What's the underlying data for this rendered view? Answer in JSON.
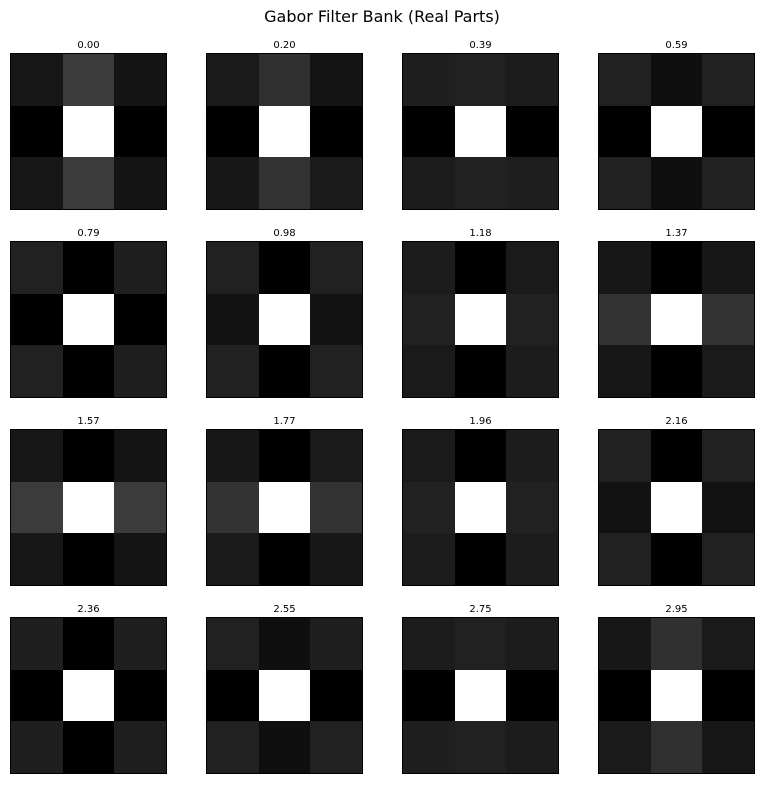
{
  "title": "Gabor Filter Bank (Real Parts)",
  "chart_data": {
    "type": "heatmap",
    "title": "Gabor Filter Bank (Real Parts)",
    "grid": false,
    "colormap": "gray",
    "layout": "4 rows x 4 columns",
    "panels": [
      {
        "title": "0.00",
        "values": [
          [
            0.09,
            0.23,
            0.08
          ],
          [
            0.0,
            1.0,
            0.0
          ],
          [
            0.09,
            0.23,
            0.08
          ]
        ]
      },
      {
        "title": "0.20",
        "values": [
          [
            0.1,
            0.19,
            0.08
          ],
          [
            0.0,
            1.0,
            0.0
          ],
          [
            0.09,
            0.2,
            0.1
          ]
        ]
      },
      {
        "title": "0.39",
        "values": [
          [
            0.12,
            0.13,
            0.11
          ],
          [
            0.0,
            1.0,
            0.0
          ],
          [
            0.11,
            0.13,
            0.12
          ]
        ]
      },
      {
        "title": "0.59",
        "values": [
          [
            0.13,
            0.06,
            0.13
          ],
          [
            0.0,
            1.0,
            0.0
          ],
          [
            0.13,
            0.06,
            0.13
          ]
        ]
      },
      {
        "title": "0.79",
        "values": [
          [
            0.13,
            0.0,
            0.12
          ],
          [
            0.0,
            1.0,
            0.0
          ],
          [
            0.13,
            0.0,
            0.12
          ]
        ]
      },
      {
        "title": "0.98",
        "values": [
          [
            0.13,
            0.0,
            0.13
          ],
          [
            0.07,
            1.0,
            0.07
          ],
          [
            0.13,
            0.0,
            0.13
          ]
        ]
      },
      {
        "title": "1.18",
        "values": [
          [
            0.11,
            0.0,
            0.1
          ],
          [
            0.13,
            1.0,
            0.13
          ],
          [
            0.1,
            0.0,
            0.11
          ]
        ]
      },
      {
        "title": "1.37",
        "values": [
          [
            0.09,
            0.0,
            0.09
          ],
          [
            0.2,
            1.0,
            0.2
          ],
          [
            0.09,
            0.0,
            0.1
          ]
        ]
      },
      {
        "title": "1.57",
        "values": [
          [
            0.09,
            0.0,
            0.08
          ],
          [
            0.23,
            1.0,
            0.23
          ],
          [
            0.09,
            0.0,
            0.08
          ]
        ]
      },
      {
        "title": "1.77",
        "values": [
          [
            0.09,
            0.0,
            0.1
          ],
          [
            0.2,
            1.0,
            0.2
          ],
          [
            0.1,
            0.0,
            0.09
          ]
        ]
      },
      {
        "title": "1.96",
        "values": [
          [
            0.1,
            0.0,
            0.11
          ],
          [
            0.13,
            1.0,
            0.13
          ],
          [
            0.11,
            0.0,
            0.11
          ]
        ]
      },
      {
        "title": "2.16",
        "values": [
          [
            0.13,
            0.0,
            0.13
          ],
          [
            0.07,
            1.0,
            0.07
          ],
          [
            0.13,
            0.0,
            0.13
          ]
        ]
      },
      {
        "title": "2.36",
        "values": [
          [
            0.12,
            0.0,
            0.12
          ],
          [
            0.0,
            1.0,
            0.0
          ],
          [
            0.12,
            0.0,
            0.12
          ]
        ]
      },
      {
        "title": "2.55",
        "values": [
          [
            0.13,
            0.06,
            0.12
          ],
          [
            0.0,
            1.0,
            0.0
          ],
          [
            0.13,
            0.06,
            0.13
          ]
        ]
      },
      {
        "title": "2.75",
        "values": [
          [
            0.11,
            0.13,
            0.11
          ],
          [
            0.0,
            1.0,
            0.0
          ],
          [
            0.12,
            0.13,
            0.11
          ]
        ]
      },
      {
        "title": "2.95",
        "values": [
          [
            0.09,
            0.19,
            0.1
          ],
          [
            0.0,
            1.0,
            0.0
          ],
          [
            0.1,
            0.19,
            0.09
          ]
        ]
      }
    ]
  }
}
